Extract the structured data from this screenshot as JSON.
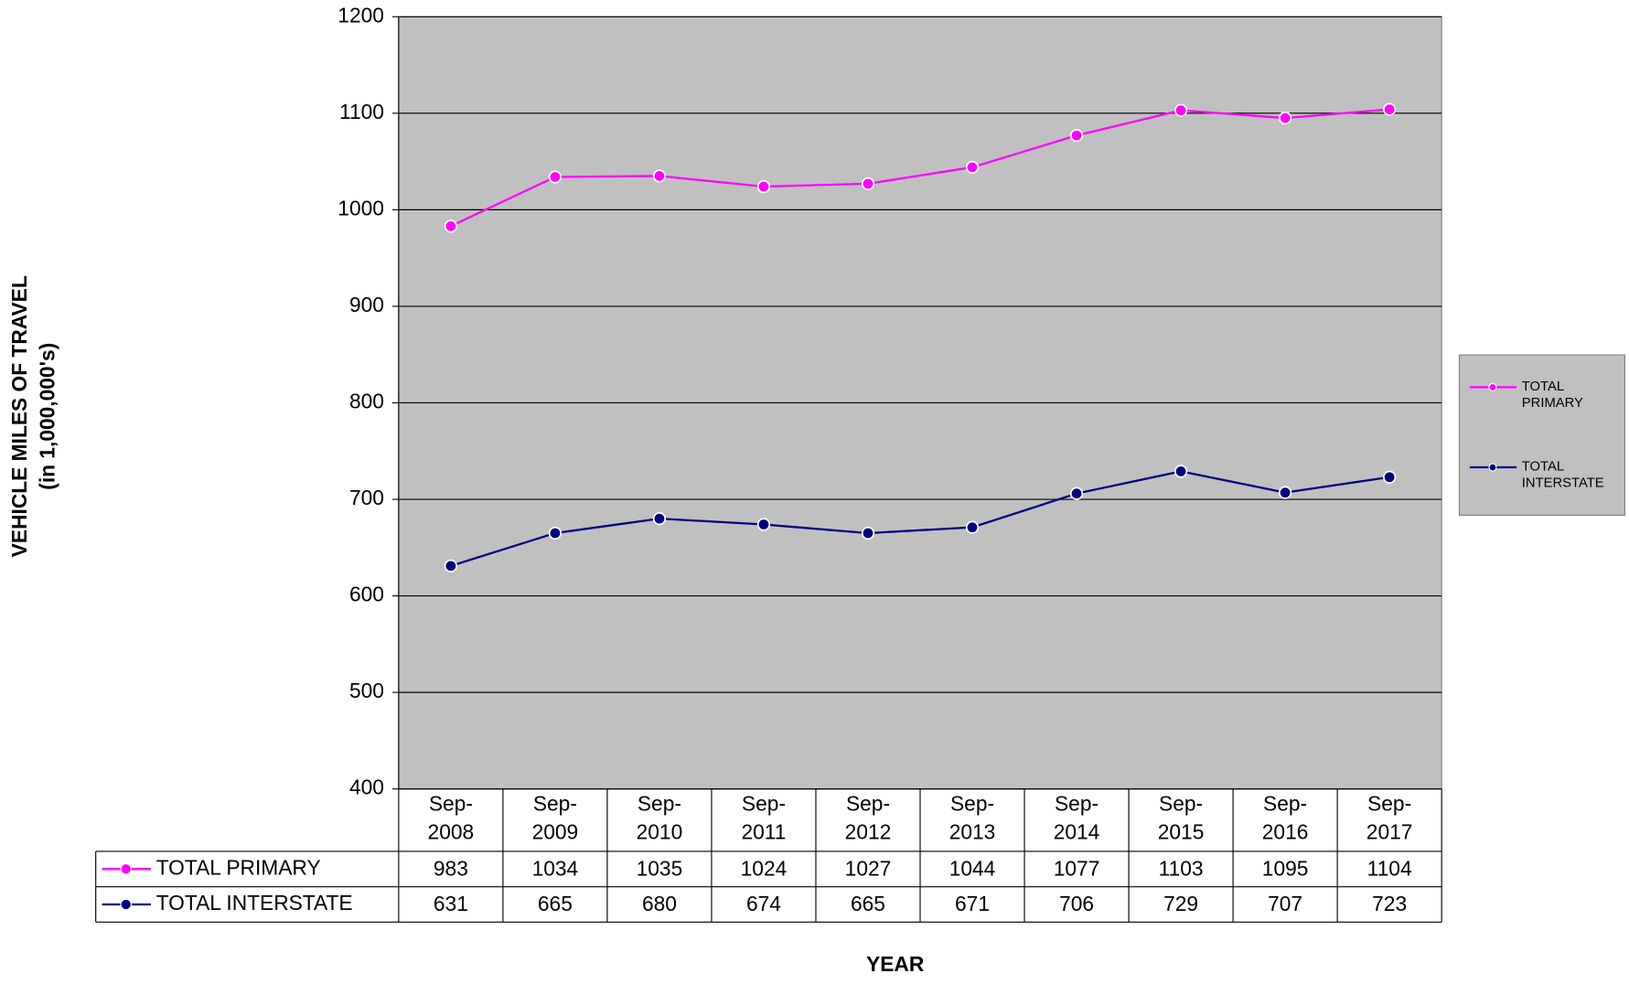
{
  "chart_data": {
    "type": "line",
    "y_label": [
      "VEHICLE MILES OF TRAVEL",
      "(in 1,000,000's)"
    ],
    "x_label": "YEAR",
    "categories": [
      "Sep-2008",
      "Sep-2009",
      "Sep-2010",
      "Sep-2011",
      "Sep-2012",
      "Sep-2013",
      "Sep-2014",
      "Sep-2015",
      "Sep-2016",
      "Sep-2017"
    ],
    "series": [
      {
        "name": "TOTAL PRIMARY",
        "color": "#ff00ff",
        "values": [
          983,
          1034,
          1035,
          1024,
          1027,
          1044,
          1077,
          1103,
          1095,
          1104
        ]
      },
      {
        "name": "TOTAL INTERSTATE",
        "color": "#000080",
        "values": [
          631,
          665,
          680,
          674,
          665,
          671,
          706,
          729,
          707,
          723
        ]
      }
    ],
    "ylim": [
      400,
      1200
    ],
    "yticks": [
      400,
      500,
      600,
      700,
      800,
      900,
      1000,
      1100,
      1200
    ],
    "grid": true,
    "background": "#c0c0c0",
    "legend": "right"
  }
}
